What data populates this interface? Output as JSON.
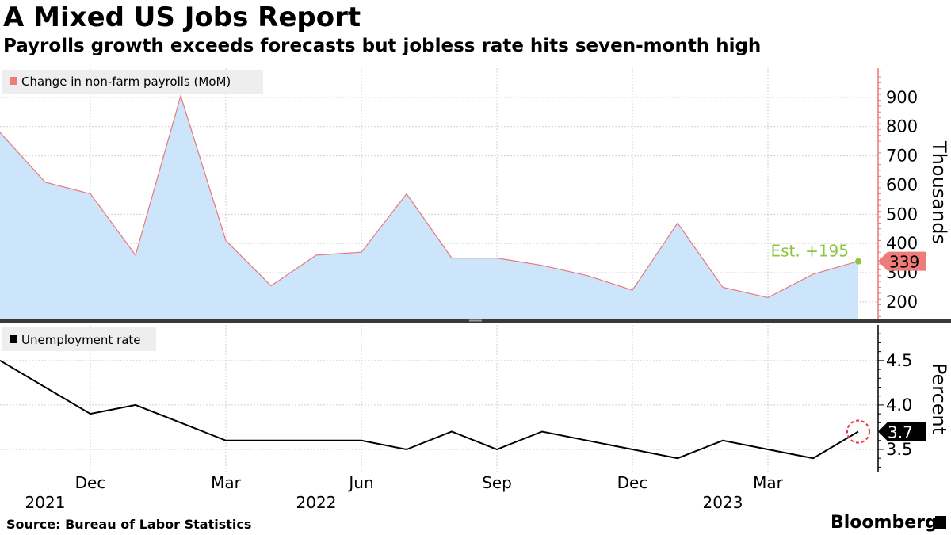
{
  "header": {
    "title": "A Mixed US Jobs Report",
    "subtitle": "Payrolls growth exceeds forecasts but jobless rate hits seven-month high"
  },
  "footer": {
    "source": "Source: Bureau of Labor Statistics",
    "brand": "Bloomberg"
  },
  "chart_data": [
    {
      "type": "area",
      "legend": "Change in non-farm payrolls (MoM)",
      "unit_label": "Thousands",
      "ylim": [
        140,
        1000
      ],
      "yticks": [
        200,
        300,
        400,
        500,
        600,
        700,
        800,
        900
      ],
      "x": [
        "2021-10",
        "2021-11",
        "2021-12",
        "2022-01",
        "2022-02",
        "2022-03",
        "2022-04",
        "2022-05",
        "2022-06",
        "2022-07",
        "2022-08",
        "2022-09",
        "2022-10",
        "2022-11",
        "2022-12",
        "2023-01",
        "2023-02",
        "2023-03",
        "2023-04",
        "2023-05"
      ],
      "values": [
        780,
        610,
        570,
        360,
        905,
        410,
        255,
        360,
        370,
        570,
        350,
        350,
        325,
        290,
        240,
        470,
        250,
        215,
        295,
        339
      ],
      "last_value_label": "339",
      "estimate_label": "Est. +195",
      "color_fill": "#cce5fb",
      "color_line": "#e8787a",
      "color_marker": "#f07b7b",
      "color_estimate": "#8cc63f",
      "grid": true
    },
    {
      "type": "line",
      "legend": "Unemployment rate",
      "unit_label": "Percent",
      "ylim": [
        3.25,
        4.9
      ],
      "yticks": [
        "3.5",
        "4.0",
        "4.5"
      ],
      "x": [
        "2021-10",
        "2021-11",
        "2021-12",
        "2022-01",
        "2022-02",
        "2022-03",
        "2022-04",
        "2022-05",
        "2022-06",
        "2022-07",
        "2022-08",
        "2022-09",
        "2022-10",
        "2022-11",
        "2022-12",
        "2023-01",
        "2023-02",
        "2023-03",
        "2023-04",
        "2023-05"
      ],
      "values": [
        4.5,
        4.2,
        3.9,
        4.0,
        3.8,
        3.6,
        3.6,
        3.6,
        3.6,
        3.5,
        3.7,
        3.5,
        3.7,
        3.6,
        3.5,
        3.4,
        3.6,
        3.5,
        3.4,
        3.7
      ],
      "last_value_label": "3.7",
      "color_line": "#000000",
      "color_highlight": "#e8343a",
      "grid": true
    }
  ],
  "x_axis": {
    "ticks": [
      {
        "label": "Dec",
        "year": "2021",
        "month": "2021-12"
      },
      {
        "label": "Mar",
        "year": "",
        "month": "2022-03"
      },
      {
        "label": "Jun",
        "year": "2022",
        "month": "2022-06"
      },
      {
        "label": "Sep",
        "year": "",
        "month": "2022-09"
      },
      {
        "label": "Dec",
        "year": "",
        "month": "2022-12"
      },
      {
        "label": "Mar",
        "year": "2023",
        "month": "2023-03"
      }
    ]
  }
}
